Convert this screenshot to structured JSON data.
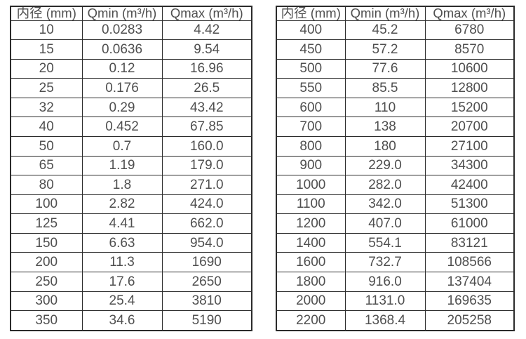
{
  "colors": {
    "background": "#ffffff",
    "table_border": "#2b2b2b",
    "table_text": "#4f4f4f"
  },
  "tables": [
    {
      "id": "small-diameters",
      "headers": [
        "内径 (mm)",
        "Qmin (m³/h)",
        "Qmax (m³/h)"
      ],
      "rows": [
        [
          "10",
          "0.0283",
          "4.42"
        ],
        [
          "15",
          "0.0636",
          "9.54"
        ],
        [
          "20",
          "0.12",
          "16.96"
        ],
        [
          "25",
          "0.176",
          "26.5"
        ],
        [
          "32",
          "0.29",
          "43.42"
        ],
        [
          "40",
          "0.452",
          "67.85"
        ],
        [
          "50",
          "0.7",
          "160.0"
        ],
        [
          "65",
          "1.19",
          "179.0"
        ],
        [
          "80",
          "1.8",
          "271.0"
        ],
        [
          "100",
          "2.82",
          "424.0"
        ],
        [
          "125",
          "4.41",
          "662.0"
        ],
        [
          "150",
          "6.63",
          "954.0"
        ],
        [
          "200",
          "11.3",
          "1690"
        ],
        [
          "250",
          "17.6",
          "2650"
        ],
        [
          "300",
          "25.4",
          "3810"
        ],
        [
          "350",
          "34.6",
          "5190"
        ]
      ]
    },
    {
      "id": "large-diameters",
      "headers": [
        "内径 (mm)",
        "Qmin (m³/h)",
        "Qmax (m³/h)"
      ],
      "rows": [
        [
          "400",
          "45.2",
          "6780"
        ],
        [
          "450",
          "57.2",
          "8570"
        ],
        [
          "500",
          "77.6",
          "10600"
        ],
        [
          "550",
          "85.5",
          "12800"
        ],
        [
          "600",
          "110",
          "15200"
        ],
        [
          "700",
          "138",
          "20700"
        ],
        [
          "800",
          "180",
          "27100"
        ],
        [
          "900",
          "229.0",
          "34300"
        ],
        [
          "1000",
          "282.0",
          "42400"
        ],
        [
          "1100",
          "342.0",
          "51300"
        ],
        [
          "1200",
          "407.0",
          "61000"
        ],
        [
          "1400",
          "554.1",
          "83121"
        ],
        [
          "1600",
          "732.7",
          "108566"
        ],
        [
          "1800",
          "916.0",
          "137404"
        ],
        [
          "2000",
          "1131.0",
          "169635"
        ],
        [
          "2200",
          "1368.4",
          "205258"
        ]
      ]
    }
  ]
}
